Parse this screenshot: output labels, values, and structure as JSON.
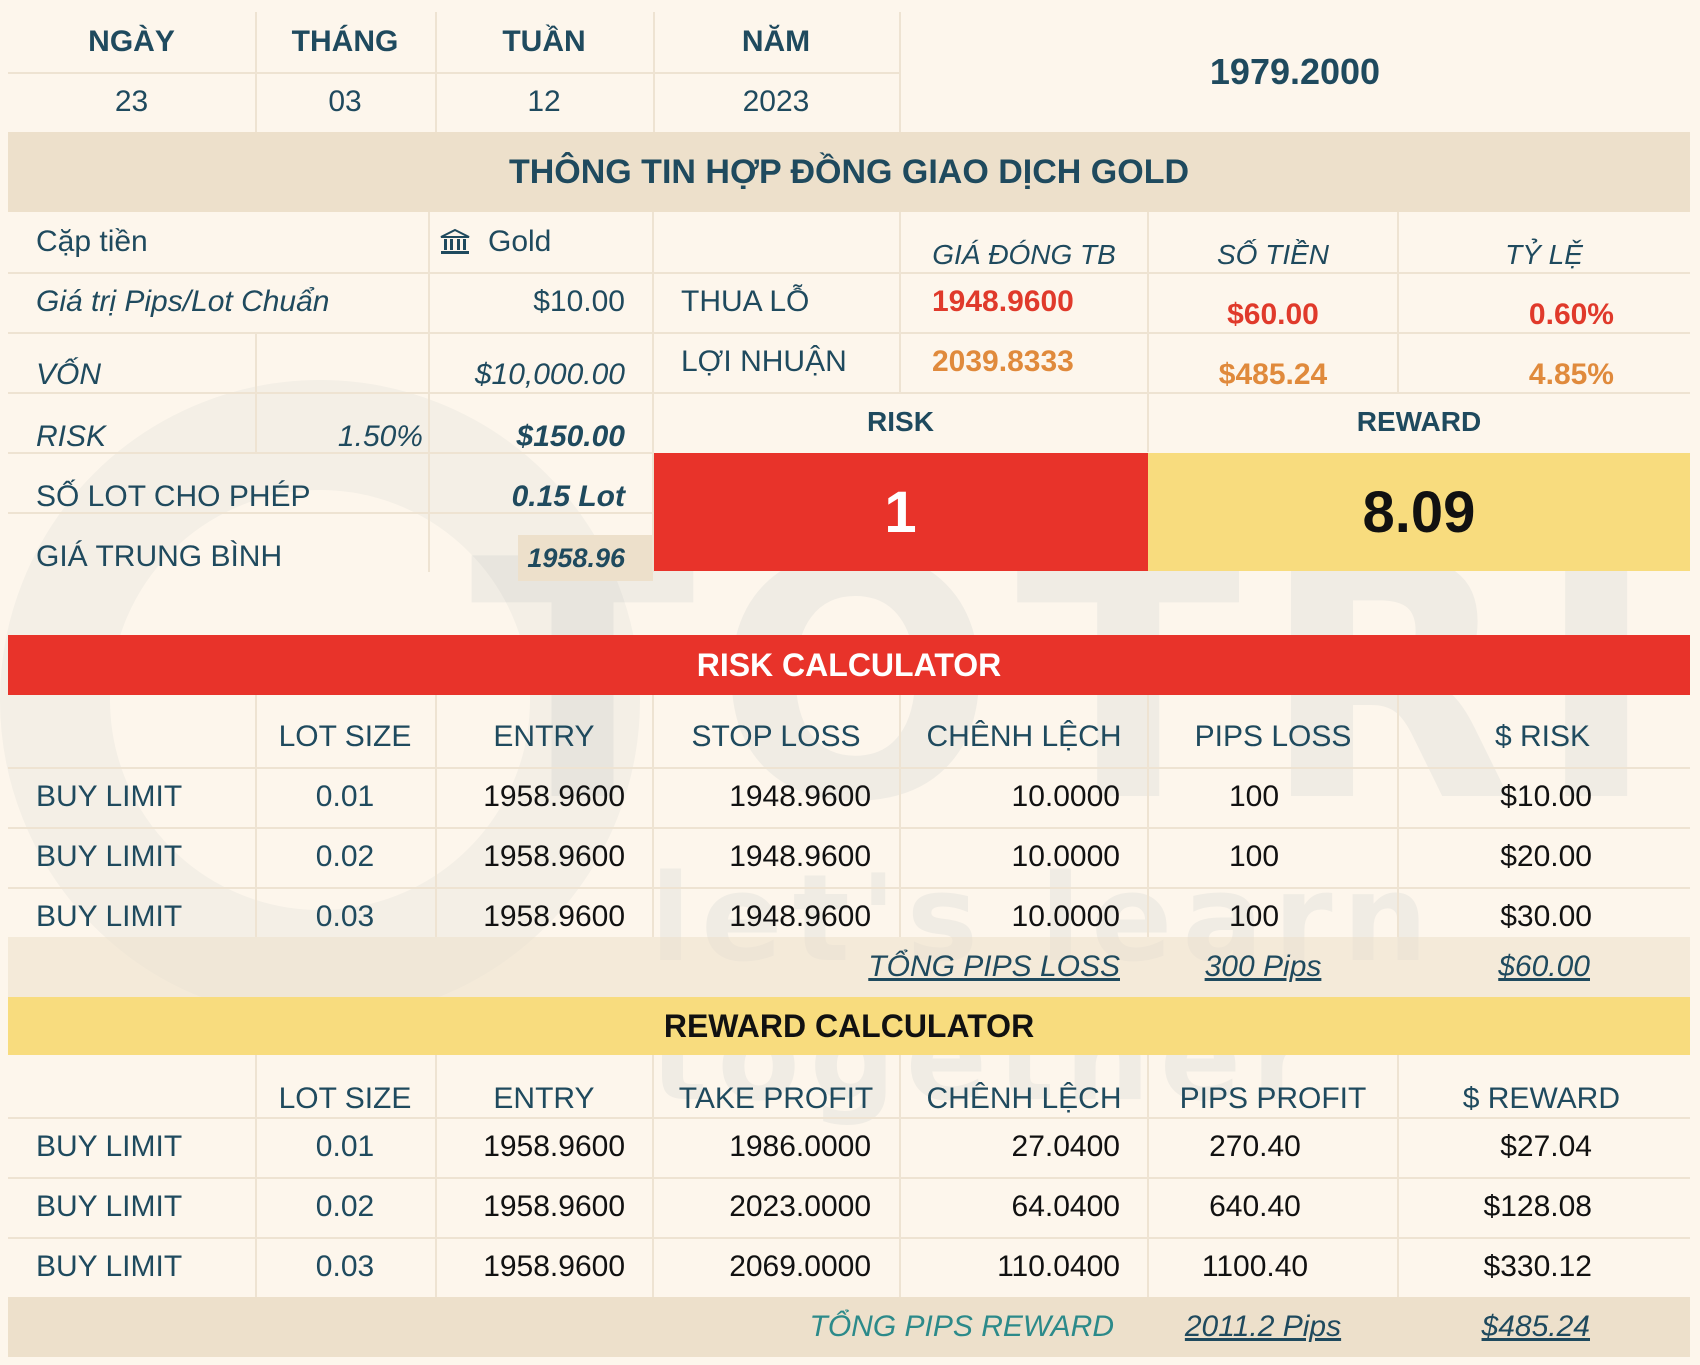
{
  "date": {
    "headers": [
      "NGÀY",
      "THÁNG",
      "TUẦN",
      "NĂM"
    ],
    "values": [
      "23",
      "03",
      "12",
      "2023"
    ],
    "price": "1979.2000"
  },
  "title": "THÔNG TIN HỢP ĐỒNG GIAO DỊCH GOLD",
  "info": {
    "pair_label": "Cặp tiền",
    "pair_value": "Gold",
    "pip_label": "Giá trị Pips/Lot Chuẩn",
    "pip_value": "$10.00",
    "capital_label": "VỐN",
    "capital_value": "$10,000.00",
    "risk_label": "RISK",
    "risk_pct": "1.50%",
    "risk_value": "$150.00",
    "lot_label": "SỐ LOT CHO PHÉP",
    "lot_value": "0.15 Lot",
    "avg_label": "GIÁ TRUNG BÌNH",
    "avg_value": "1958.96"
  },
  "summary": {
    "col_headers": [
      "GIÁ ĐÓNG TB",
      "SỐ TIỀN",
      "TỶ LỆ"
    ],
    "loss_label": "THUA LỖ",
    "loss_price": "1948.9600",
    "loss_amount": "$60.00",
    "loss_pct": "0.60%",
    "profit_label": "LỢI NHUẬN",
    "profit_price": "2039.8333",
    "profit_amount": "$485.24",
    "profit_pct": "4.85%",
    "risk_header": "RISK",
    "reward_header": "REWARD",
    "risk_ratio": "1",
    "reward_ratio": "8.09"
  },
  "risk_calc": {
    "title": "RISK CALCULATOR",
    "headers": [
      "LOT SIZE",
      "ENTRY",
      "STOP LOSS",
      "CHÊNH LỆCH",
      "PIPS LOSS",
      "$ RISK"
    ],
    "rows": [
      {
        "type": "BUY LIMIT",
        "lot": "0.01",
        "entry": "1958.9600",
        "sl": "1948.9600",
        "diff": "10.0000",
        "pips": "100",
        "amount": "$10.00"
      },
      {
        "type": "BUY LIMIT",
        "lot": "0.02",
        "entry": "1958.9600",
        "sl": "1948.9600",
        "diff": "10.0000",
        "pips": "100",
        "amount": "$20.00"
      },
      {
        "type": "BUY LIMIT",
        "lot": "0.03",
        "entry": "1958.9600",
        "sl": "1948.9600",
        "diff": "10.0000",
        "pips": "100",
        "amount": "$30.00"
      }
    ],
    "total_label": "TỔNG PIPS LOSS",
    "total_pips": "300 Pips",
    "total_amount": "$60.00"
  },
  "reward_calc": {
    "title": "REWARD CALCULATOR",
    "headers": [
      "LOT SIZE",
      "ENTRY",
      "TAKE PROFIT",
      "CHÊNH LỆCH",
      "PIPS PROFIT",
      "$ REWARD"
    ],
    "rows": [
      {
        "type": "BUY LIMIT",
        "lot": "0.01",
        "entry": "1958.9600",
        "tp": "1986.0000",
        "diff": "27.0400",
        "pips": "270.40",
        "amount": "$27.04"
      },
      {
        "type": "BUY LIMIT",
        "lot": "0.02",
        "entry": "1958.9600",
        "tp": "2023.0000",
        "diff": "64.0400",
        "pips": "640.40",
        "amount": "$128.08"
      },
      {
        "type": "BUY LIMIT",
        "lot": "0.03",
        "entry": "1958.9600",
        "tp": "2069.0000",
        "diff": "110.0400",
        "pips": "1100.40",
        "amount": "$330.12"
      }
    ],
    "total_label": "TỔNG PIPS REWARD",
    "total_pips": "2011.2 Pips",
    "total_amount": "$485.24"
  },
  "watermark": {
    "big": "TOTRIEU",
    "small": "let's learn together"
  },
  "colors": {
    "teal": "#1f4a5e",
    "red": "#e8332a",
    "yellow": "#f8dc7e",
    "beige": "#ede0cb",
    "cream": "#fdf6ec"
  }
}
